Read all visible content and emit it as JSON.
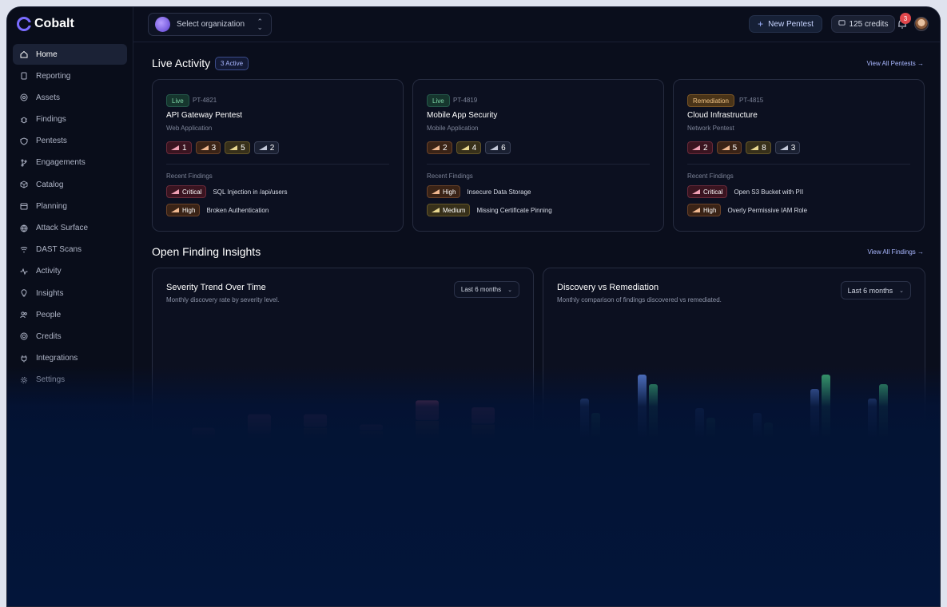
{
  "app": {
    "name": "Cobalt"
  },
  "sidebar": {
    "items": [
      {
        "label": "Home",
        "icon": "home-icon"
      },
      {
        "label": "Reporting",
        "icon": "document-icon"
      },
      {
        "label": "Assets",
        "icon": "target-icon"
      },
      {
        "label": "Findings",
        "icon": "bug-icon"
      },
      {
        "label": "Pentests",
        "icon": "shield-icon"
      },
      {
        "label": "Engagements",
        "icon": "branch-icon"
      },
      {
        "label": "Catalog",
        "icon": "box-icon"
      },
      {
        "label": "Planning",
        "icon": "calendar-icon"
      },
      {
        "label": "Attack Surface",
        "icon": "globe-icon"
      },
      {
        "label": "DAST Scans",
        "icon": "wifi-icon"
      },
      {
        "label": "Activity",
        "icon": "pulse-icon"
      },
      {
        "label": "Insights",
        "icon": "lightbulb-icon"
      },
      {
        "label": "People",
        "icon": "users-icon"
      },
      {
        "label": "Credits",
        "icon": "coin-icon"
      },
      {
        "label": "Integrations",
        "icon": "plug-icon"
      },
      {
        "label": "Settings",
        "icon": "gear-icon"
      }
    ]
  },
  "topbar": {
    "org_placeholder": "Select organization",
    "new_pentest": "New Pentest",
    "credits": "125 credits",
    "notifications": "3"
  },
  "live": {
    "title": "Live Activity",
    "active": "3 Active",
    "view_all": "View All Pentests →",
    "cards": [
      {
        "status": "Live",
        "id": "PT-4821",
        "title": "API Gateway Pentest",
        "sub": "Web Application",
        "counts": [
          "1",
          "3",
          "5",
          "2"
        ],
        "recent_label": "Recent Findings",
        "findings": [
          {
            "sev": "Critical",
            "text": "SQL Injection in /api/users"
          },
          {
            "sev": "High",
            "text": "Broken Authentication"
          }
        ]
      },
      {
        "status": "Live",
        "id": "PT-4819",
        "title": "Mobile App Security",
        "sub": "Mobile Application",
        "counts": [
          "2",
          "4",
          "6"
        ],
        "recent_label": "Recent Findings",
        "findings": [
          {
            "sev": "High",
            "text": "Insecure Data Storage"
          },
          {
            "sev": "Medium",
            "text": "Missing Certificate Pinning"
          }
        ]
      },
      {
        "status": "Remediation",
        "id": "PT-4815",
        "title": "Cloud Infrastructure",
        "sub": "Network Pentest",
        "counts": [
          "2",
          "5",
          "8",
          "3"
        ],
        "recent_label": "Recent Findings",
        "findings": [
          {
            "sev": "Critical",
            "text": "Open S3 Bucket with PII"
          },
          {
            "sev": "High",
            "text": "Overly Permissive IAM Role"
          }
        ]
      }
    ]
  },
  "insights": {
    "title": "Open Finding Insights",
    "view_all": "View All Findings →",
    "severity_panel": {
      "title": "Severity Trend Over Time",
      "sub": "Monthly discovery rate by severity level.",
      "range": "Last 6 months"
    },
    "discovery_panel": {
      "title": "Discovery vs Remediation",
      "sub": "Monthly comparison of findings discovered vs remediated.",
      "range": "Last 6 months"
    }
  },
  "chart_data": [
    {
      "type": "bar",
      "stacked": true,
      "categories": [
        "",
        "",
        "",
        "",
        "",
        ""
      ],
      "series": [
        {
          "values": [
            4,
            6,
            4,
            2,
            6,
            5
          ],
          "color": "#d2577a"
        },
        {
          "values": [
            3,
            6,
            8,
            7,
            7,
            7
          ],
          "color": "#c0663f"
        },
        {
          "values": [
            4,
            3,
            3,
            3,
            6,
            5
          ],
          "color": "#8a8a3a"
        },
        {
          "values": [
            3,
            3,
            3,
            3,
            3,
            3
          ],
          "color": "#6a708a"
        }
      ]
    },
    {
      "type": "bar",
      "categories": [
        "",
        "",
        "",
        "",
        "",
        ""
      ],
      "series": [
        {
          "values": [
            12,
            17,
            10,
            9,
            14,
            12
          ],
          "color": "#5b7fd6"
        },
        {
          "values": [
            9,
            15,
            8,
            7,
            17,
            15
          ],
          "color": "#3fae74"
        }
      ]
    }
  ]
}
